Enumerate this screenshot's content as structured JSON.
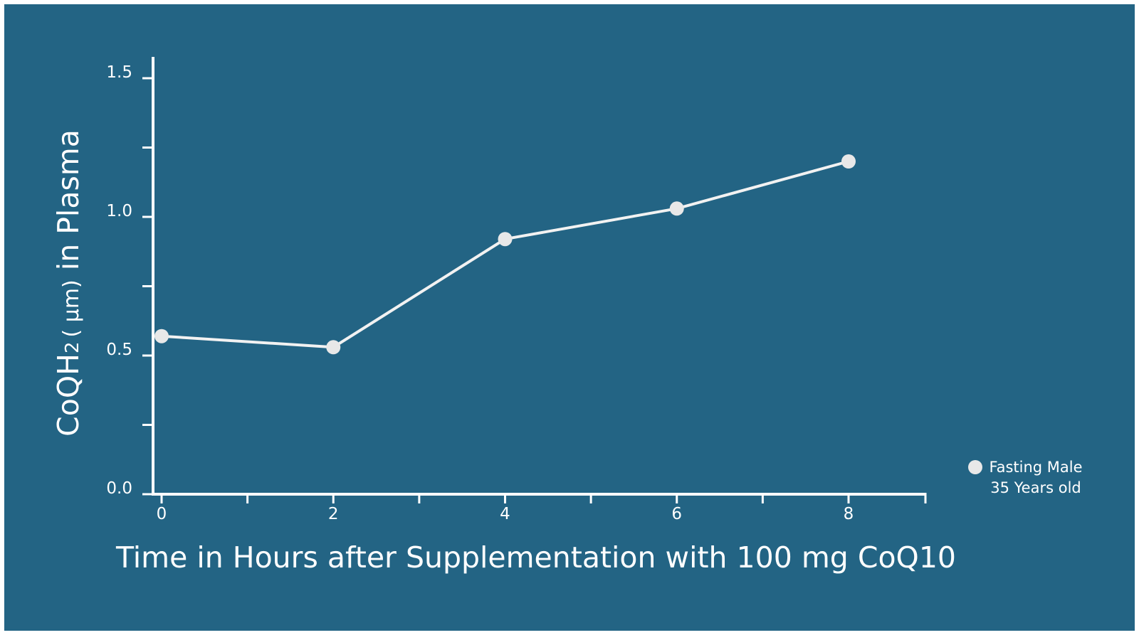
{
  "colors": {
    "background": "#236484",
    "foreground": "#ffffff",
    "marker": "#e8e8e8"
  },
  "chart_data": {
    "type": "line",
    "title": "",
    "xlabel": "Time in Hours after Supplementation with 100 mg CoQ10",
    "ylabel": {
      "prefix": "CoQH",
      "subscript": "2",
      "unit": "( µm)",
      "suffix": " in Plasma"
    },
    "xlim": [
      -0.1,
      8.6
    ],
    "ylim": [
      0,
      1.6
    ],
    "xticks": [
      0,
      1,
      2,
      3,
      4,
      5,
      6,
      7,
      8
    ],
    "xtick_labels": [
      "0",
      "",
      "2",
      "",
      "4",
      "",
      "6",
      "",
      "8"
    ],
    "yticks": [
      0,
      0.25,
      0.5,
      0.75,
      1.0,
      1.25,
      1.5
    ],
    "ytick_labels": [
      "0.0",
      "",
      "0.5",
      "",
      "1.0",
      "",
      "1.5"
    ],
    "series": [
      {
        "name": "Fasting Male 35 Years old",
        "x": [
          0,
          2,
          4,
          6,
          8
        ],
        "y": [
          0.57,
          0.53,
          0.92,
          1.03,
          1.2
        ]
      }
    ],
    "legend": {
      "position": "bottom-right",
      "lines": [
        "Fasting Male",
        "35 Years old"
      ]
    },
    "grid": false
  }
}
